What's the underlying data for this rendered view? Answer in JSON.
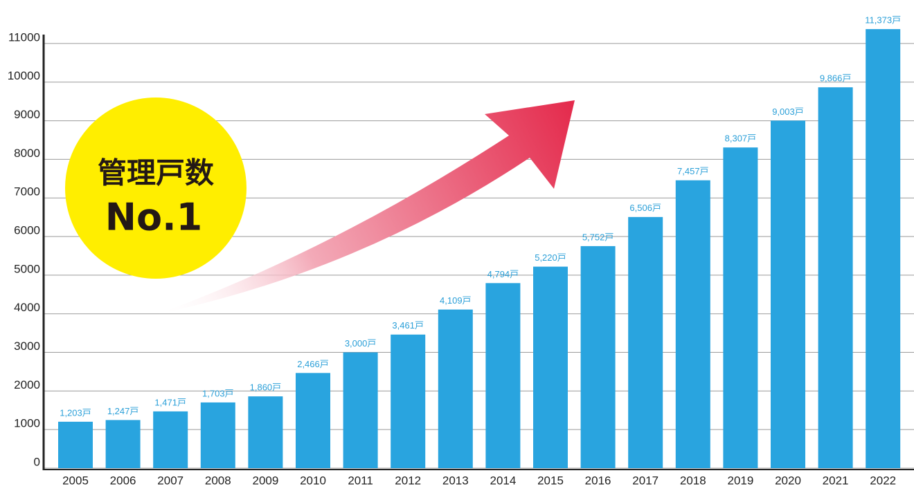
{
  "chart_data": {
    "type": "bar",
    "categories": [
      "2005",
      "2006",
      "2007",
      "2008",
      "2009",
      "2010",
      "2011",
      "2012",
      "2013",
      "2014",
      "2015",
      "2016",
      "2017",
      "2018",
      "2019",
      "2020",
      "2021",
      "2022"
    ],
    "values": [
      1203,
      1247,
      1471,
      1703,
      1860,
      2466,
      3000,
      3461,
      4109,
      4794,
      5220,
      5752,
      6506,
      7457,
      8307,
      9003,
      9866,
      11373
    ],
    "value_labels": [
      "1,203戸",
      "1,247戸",
      "1,471戸",
      "1,703戸",
      "1,860戸",
      "2,466戸",
      "3,000戸",
      "3,461戸",
      "4,109戸",
      "4,794戸",
      "5,220戸",
      "5,752戸",
      "6,506戸",
      "7,457戸",
      "8,307戸",
      "9,003戸",
      "9,866戸",
      "11,373戸"
    ],
    "color": "#29a4df",
    "ylim": [
      0,
      11500
    ],
    "yticks": [
      0,
      1000,
      2000,
      3000,
      4000,
      5000,
      6000,
      7000,
      8000,
      9000,
      10000,
      11000
    ],
    "grid": true
  },
  "badge": {
    "line1": "管理戸数",
    "line2": "No.1"
  }
}
